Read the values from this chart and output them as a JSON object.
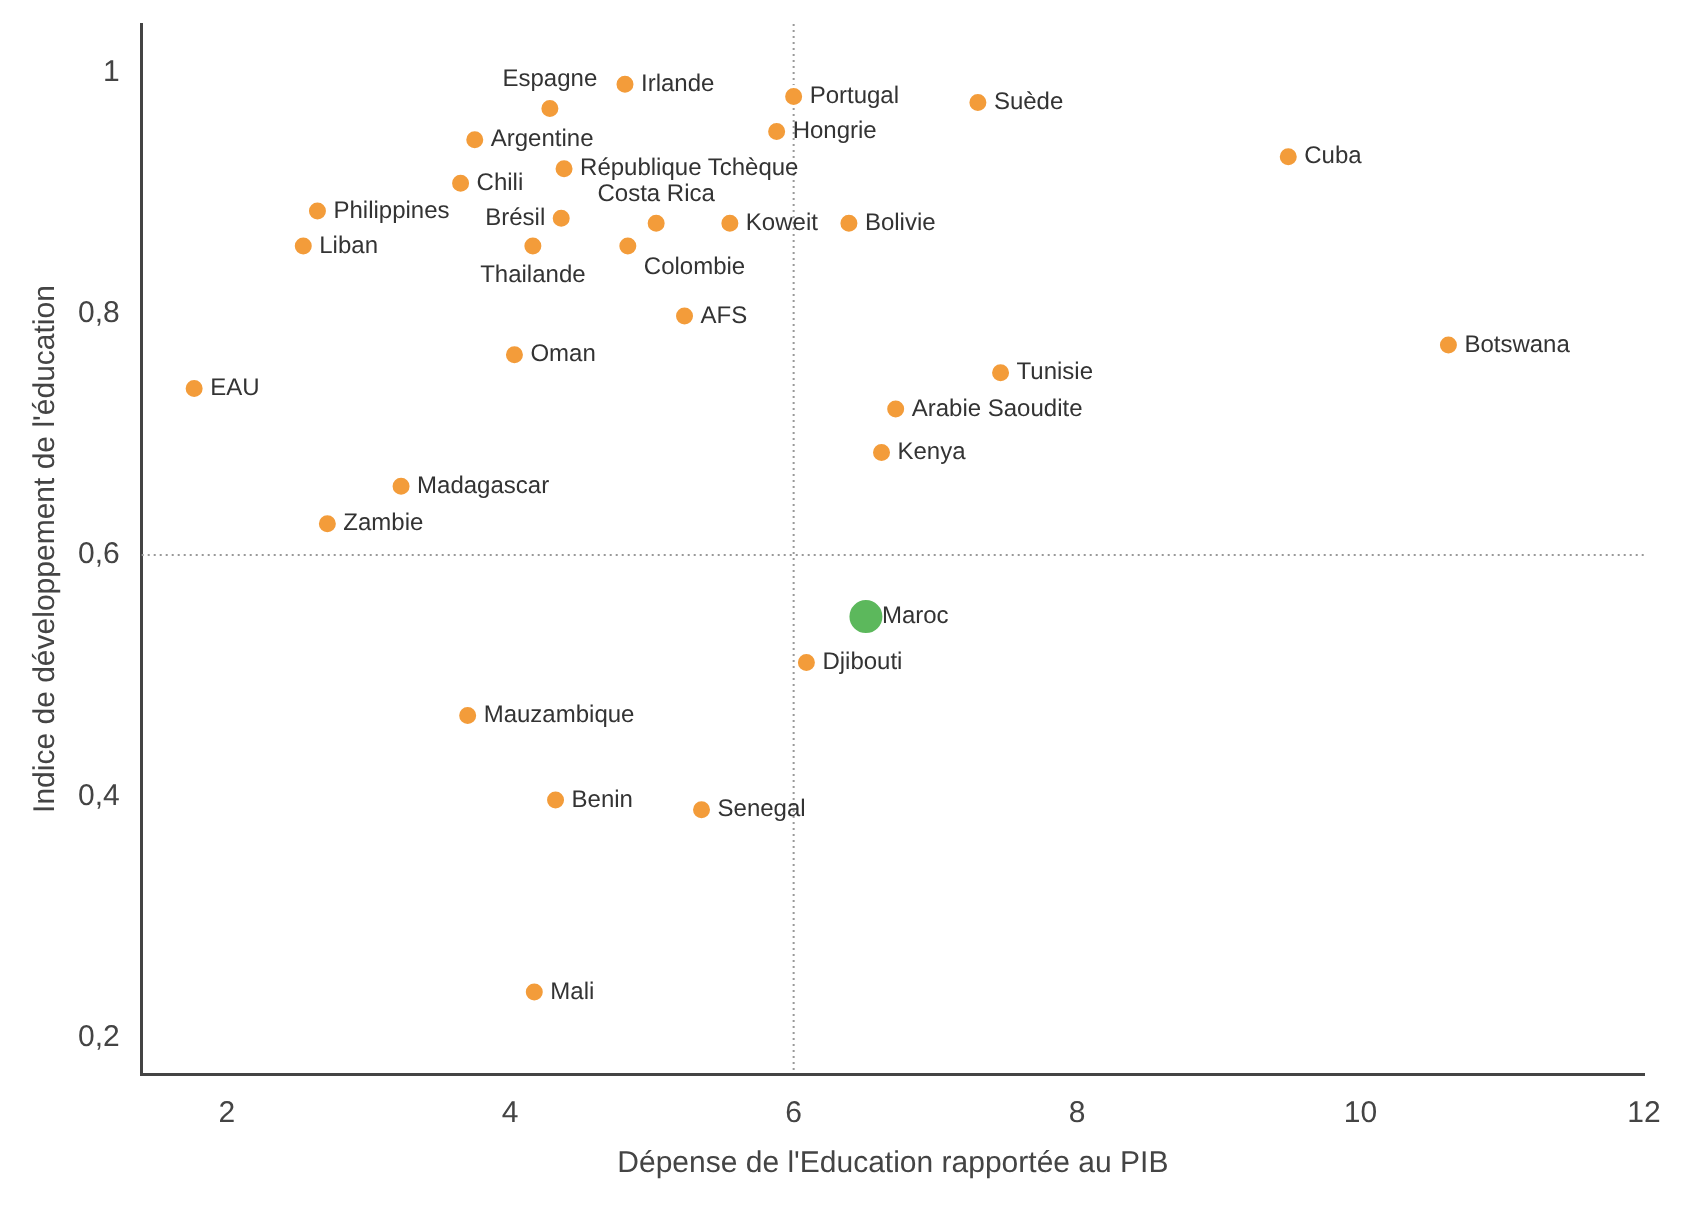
{
  "chart_data": {
    "type": "scatter",
    "xlabel": "Dépense de l'Education rapportée au PIB",
    "ylabel": "Indice de développement de l'éducation",
    "xlim": [
      1.4,
      12
    ],
    "xticks": [
      2,
      4,
      6,
      8,
      10,
      12
    ],
    "ylim": [
      0.17,
      1.04
    ],
    "yticks": [
      {
        "value": 0.2,
        "label": "0,2"
      },
      {
        "value": 0.4,
        "label": "0,4"
      },
      {
        "value": 0.6,
        "label": "0,6"
      },
      {
        "value": 0.8,
        "label": "0,8"
      },
      {
        "value": 1,
        "label": "1"
      }
    ],
    "grid": false,
    "legend": false,
    "marker": "circle",
    "series": [
      {
        "color": "#f39c3a",
        "x": [
          4.81,
          4.28,
          6.0,
          7.3,
          3.75,
          5.88,
          4.38,
          9.49,
          3.65,
          2.64,
          5.03,
          4.36,
          5.55,
          6.39,
          2.54,
          4.16,
          4.83,
          5.23,
          4.03,
          7.46,
          10.62,
          1.77,
          6.72,
          6.62,
          3.23,
          2.71,
          6.09,
          3.7,
          4.32,
          5.35,
          4.17
        ],
        "values": [
          0.99,
          0.97,
          0.98,
          0.975,
          0.944,
          0.951,
          0.92,
          0.93,
          0.908,
          0.885,
          0.875,
          0.879,
          0.875,
          0.875,
          0.856,
          0.856,
          0.856,
          0.798,
          0.766,
          0.751,
          0.774,
          0.738,
          0.721,
          0.685,
          0.657,
          0.626,
          0.511,
          0.467,
          0.397,
          0.389,
          0.238
        ]
      },
      {
        "color": "#5cb85c",
        "x": [
          6.51
        ],
        "values": [
          0.549
        ]
      }
    ],
    "ref_lines": [
      {
        "axis": "x",
        "value": 6,
        "color": "#999999",
        "line_style": "dotted"
      },
      {
        "axis": "y",
        "value": 0.6,
        "color": "#999999",
        "line_style": "dotted"
      }
    ],
    "annotations": [
      {
        "text": "Irlande",
        "x": 4.81,
        "y": 0.99
      },
      {
        "text": "Espagne",
        "x": 4.28,
        "y": 0.97
      },
      {
        "text": "Portugal",
        "x": 6.0,
        "y": 0.98
      },
      {
        "text": "Suède",
        "x": 7.3,
        "y": 0.975
      },
      {
        "text": "Argentine",
        "x": 3.75,
        "y": 0.944
      },
      {
        "text": "Hongrie",
        "x": 5.88,
        "y": 0.951
      },
      {
        "text": "République Tchèque",
        "x": 4.38,
        "y": 0.92
      },
      {
        "text": "Cuba",
        "x": 9.49,
        "y": 0.93
      },
      {
        "text": "Chili",
        "x": 3.65,
        "y": 0.908
      },
      {
        "text": "Philippines",
        "x": 2.64,
        "y": 0.885
      },
      {
        "text": "Costa Rica",
        "x": 5.03,
        "y": 0.875
      },
      {
        "text": "Brésil",
        "x": 4.36,
        "y": 0.879
      },
      {
        "text": "Koweit",
        "x": 5.55,
        "y": 0.875
      },
      {
        "text": "Bolivie",
        "x": 6.39,
        "y": 0.875
      },
      {
        "text": "Liban",
        "x": 2.54,
        "y": 0.856
      },
      {
        "text": "Thailande",
        "x": 4.16,
        "y": 0.856
      },
      {
        "text": "Colombie",
        "x": 4.83,
        "y": 0.856
      },
      {
        "text": "AFS",
        "x": 5.23,
        "y": 0.798
      },
      {
        "text": "Oman",
        "x": 4.03,
        "y": 0.766
      },
      {
        "text": "Tunisie",
        "x": 7.46,
        "y": 0.751
      },
      {
        "text": "Botswana",
        "x": 10.62,
        "y": 0.774
      },
      {
        "text": "EAU",
        "x": 1.77,
        "y": 0.738
      },
      {
        "text": "Arabie Saoudite",
        "x": 6.72,
        "y": 0.721
      },
      {
        "text": "Kenya",
        "x": 6.62,
        "y": 0.685
      },
      {
        "text": "Madagascar",
        "x": 3.23,
        "y": 0.657
      },
      {
        "text": "Zambie",
        "x": 2.71,
        "y": 0.626
      },
      {
        "text": "Maroc",
        "x": 6.51,
        "y": 0.549
      },
      {
        "text": "Djibouti",
        "x": 6.09,
        "y": 0.511
      },
      {
        "text": "Mauzambique",
        "x": 3.7,
        "y": 0.467
      },
      {
        "text": "Benin",
        "x": 4.32,
        "y": 0.397
      },
      {
        "text": "Senegal",
        "x": 5.35,
        "y": 0.389
      },
      {
        "text": "Mali",
        "x": 4.17,
        "y": 0.238
      }
    ]
  }
}
